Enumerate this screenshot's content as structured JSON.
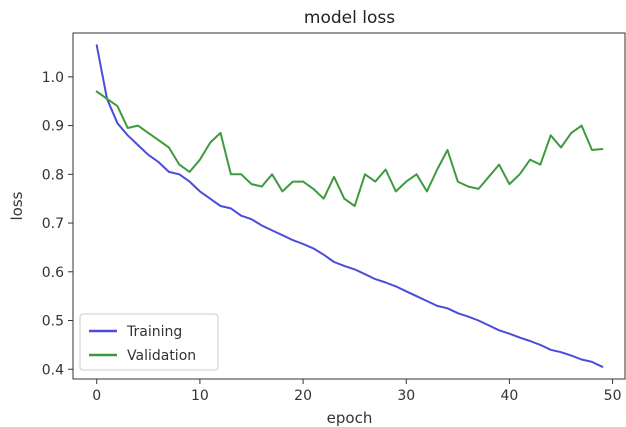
{
  "chart_data": {
    "type": "line",
    "title": "model loss",
    "xlabel": "epoch",
    "ylabel": "loss",
    "xlim": [
      -2.3,
      51.3
    ],
    "ylim": [
      0.38,
      1.09
    ],
    "xticks": [
      0,
      10,
      20,
      30,
      40,
      50
    ],
    "yticks": [
      0.4,
      0.5,
      0.6,
      0.7,
      0.8,
      0.9,
      1.0
    ],
    "xtick_labels": [
      "0",
      "10",
      "20",
      "30",
      "40",
      "50"
    ],
    "ytick_labels": [
      "0.4",
      "0.5",
      "0.6",
      "0.7",
      "0.8",
      "0.9",
      "1.0"
    ],
    "grid": false,
    "legend_position": "lower-left",
    "x": [
      0,
      1,
      2,
      3,
      4,
      5,
      6,
      7,
      8,
      9,
      10,
      11,
      12,
      13,
      14,
      15,
      16,
      17,
      18,
      19,
      20,
      21,
      22,
      23,
      24,
      25,
      26,
      27,
      28,
      29,
      30,
      31,
      32,
      33,
      34,
      35,
      36,
      37,
      38,
      39,
      40,
      41,
      42,
      43,
      44,
      45,
      46,
      47,
      48,
      49
    ],
    "series": [
      {
        "name": "Training",
        "color": "#4c4cdc",
        "values": [
          1.065,
          0.955,
          0.905,
          0.88,
          0.86,
          0.84,
          0.825,
          0.805,
          0.8,
          0.785,
          0.765,
          0.75,
          0.735,
          0.73,
          0.715,
          0.708,
          0.695,
          0.685,
          0.675,
          0.665,
          0.657,
          0.648,
          0.635,
          0.62,
          0.612,
          0.605,
          0.595,
          0.585,
          0.578,
          0.57,
          0.56,
          0.55,
          0.54,
          0.53,
          0.525,
          0.515,
          0.508,
          0.5,
          0.49,
          0.48,
          0.473,
          0.465,
          0.458,
          0.45,
          0.44,
          0.435,
          0.428,
          0.42,
          0.415,
          0.405
        ]
      },
      {
        "name": "Validation",
        "color": "#3f9a3f",
        "values": [
          0.97,
          0.955,
          0.94,
          0.895,
          0.9,
          0.885,
          0.87,
          0.855,
          0.82,
          0.805,
          0.83,
          0.865,
          0.885,
          0.8,
          0.8,
          0.78,
          0.775,
          0.8,
          0.765,
          0.785,
          0.785,
          0.77,
          0.75,
          0.795,
          0.75,
          0.735,
          0.8,
          0.785,
          0.81,
          0.765,
          0.785,
          0.8,
          0.765,
          0.81,
          0.85,
          0.785,
          0.775,
          0.77,
          0.795,
          0.82,
          0.78,
          0.8,
          0.83,
          0.82,
          0.88,
          0.855,
          0.885,
          0.9,
          0.85,
          0.852
        ]
      }
    ]
  }
}
